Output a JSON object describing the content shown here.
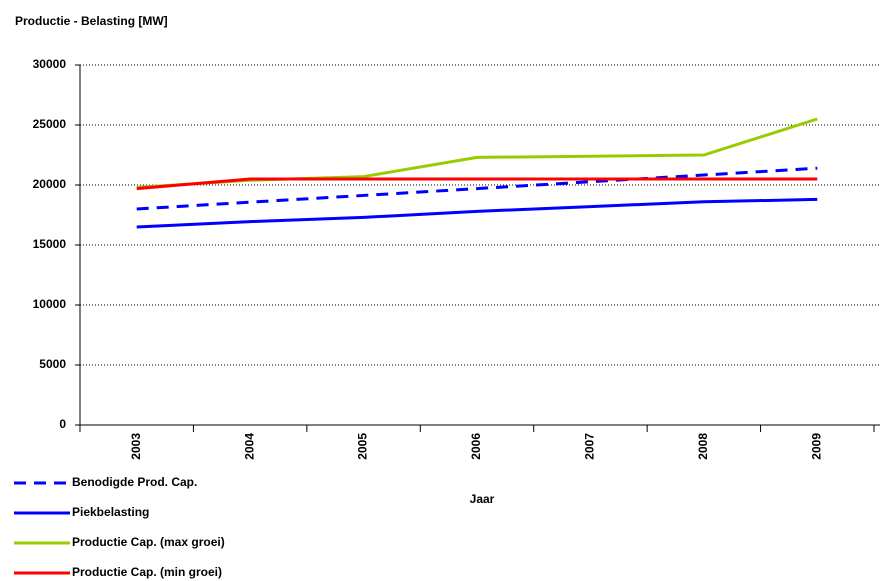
{
  "chart_data": {
    "type": "line",
    "title": "Productie - Belasting [MW]",
    "x_label": "Jaar",
    "categories": [
      "2003",
      "2004",
      "2005",
      "2006",
      "2007",
      "2008",
      "2009"
    ],
    "series": [
      {
        "name": "Benodigde Prod. Cap.",
        "color": "#0000ff",
        "dashed": true,
        "values": [
          18000,
          18570,
          19130,
          19700,
          20270,
          20830,
          21400
        ]
      },
      {
        "name": "Piekbelasting",
        "color": "#0000ff",
        "values": [
          16500,
          16950,
          17300,
          17800,
          18200,
          18600,
          18800
        ]
      },
      {
        "name": "Productie Cap. (max groei)",
        "color": "#99cc00",
        "values": [
          19800,
          20400,
          20700,
          22300,
          22400,
          22500,
          25500
        ]
      },
      {
        "name": "Productie Cap. (min groei)",
        "color": "#ff0000",
        "values": [
          19700,
          20500,
          20500,
          20500,
          20500,
          20500,
          20500
        ]
      }
    ],
    "ylim": [
      0,
      30000
    ],
    "yticks": [
      0,
      5000,
      10000,
      15000,
      20000,
      25000,
      30000
    ],
    "grid": true
  }
}
